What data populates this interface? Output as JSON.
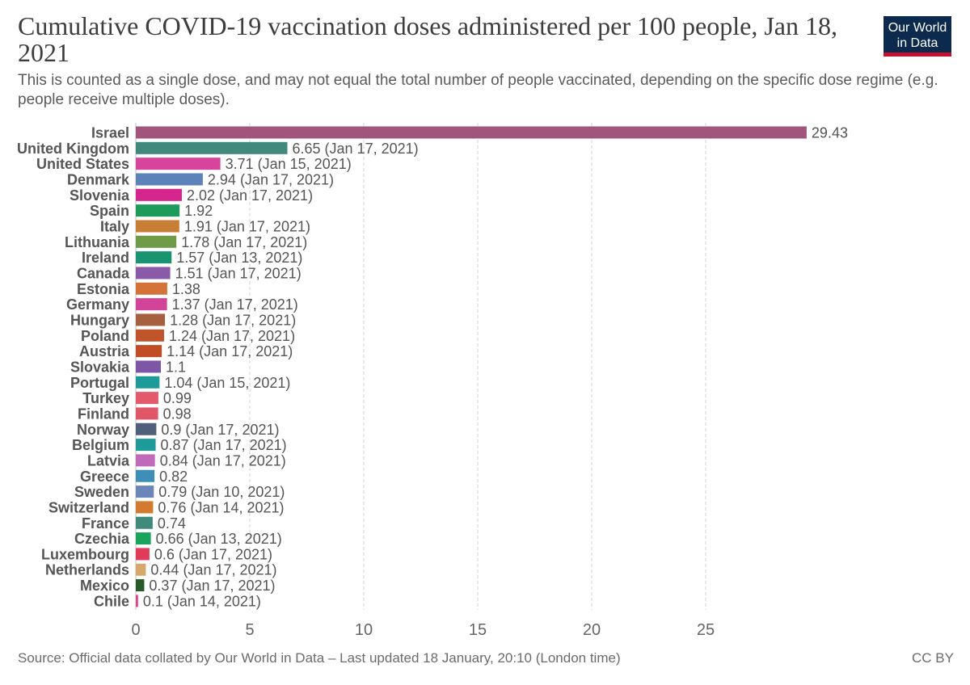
{
  "header": {
    "title": "Cumulative COVID-19 vaccination doses administered per 100 people, Jan 18, 2021",
    "subtitle": "This is counted as a single dose, and may not equal the total number of people vaccinated, depending on the specific dose regime (e.g. people receive multiple doses).",
    "logo_line1": "Our World",
    "logo_line2": "in Data"
  },
  "footer": {
    "source": "Source: Official data collated by Our World in Data – Last updated 18 January, 20:10 (London time)",
    "license": "CC BY"
  },
  "chart_data": {
    "type": "bar",
    "orientation": "horizontal",
    "title": "Cumulative COVID-19 vaccination doses administered per 100 people, Jan 18, 2021",
    "xlim": [
      0,
      30
    ],
    "xticks": [
      0,
      5,
      10,
      15,
      20,
      25
    ],
    "grid": "vertical dashed",
    "bars": [
      {
        "category": "Israel",
        "value": 29.43,
        "label": "29.43",
        "color": "#a2557a"
      },
      {
        "category": "United Kingdom",
        "value": 6.65,
        "label": "6.65 (Jan 17, 2021)",
        "color": "#3f8a7c"
      },
      {
        "category": "United States",
        "value": 3.71,
        "label": "3.71 (Jan 15, 2021)",
        "color": "#d6449c"
      },
      {
        "category": "Denmark",
        "value": 2.94,
        "label": "2.94 (Jan 17, 2021)",
        "color": "#5b82b9"
      },
      {
        "category": "Slovenia",
        "value": 2.02,
        "label": "2.02 (Jan 17, 2021)",
        "color": "#d5268d"
      },
      {
        "category": "Spain",
        "value": 1.92,
        "label": "1.92",
        "color": "#1e9a5b"
      },
      {
        "category": "Italy",
        "value": 1.91,
        "label": "1.91 (Jan 17, 2021)",
        "color": "#c97e36"
      },
      {
        "category": "Lithuania",
        "value": 1.78,
        "label": "1.78 (Jan 17, 2021)",
        "color": "#6f9a48"
      },
      {
        "category": "Ireland",
        "value": 1.57,
        "label": "1.57 (Jan 13, 2021)",
        "color": "#1a9470"
      },
      {
        "category": "Canada",
        "value": 1.51,
        "label": "1.51 (Jan 17, 2021)",
        "color": "#8a5aa8"
      },
      {
        "category": "Estonia",
        "value": 1.38,
        "label": "1.38",
        "color": "#d47338"
      },
      {
        "category": "Germany",
        "value": 1.37,
        "label": "1.37 (Jan 17, 2021)",
        "color": "#d4439a"
      },
      {
        "category": "Hungary",
        "value": 1.28,
        "label": "1.28 (Jan 17, 2021)",
        "color": "#a5603f"
      },
      {
        "category": "Poland",
        "value": 1.24,
        "label": "1.24 (Jan 17, 2021)",
        "color": "#c0552b"
      },
      {
        "category": "Austria",
        "value": 1.14,
        "label": "1.14 (Jan 17, 2021)",
        "color": "#c04d25"
      },
      {
        "category": "Slovakia",
        "value": 1.1,
        "label": "1.1",
        "color": "#7b57a6"
      },
      {
        "category": "Portugal",
        "value": 1.04,
        "label": "1.04 (Jan 15, 2021)",
        "color": "#1d9a9a"
      },
      {
        "category": "Turkey",
        "value": 0.99,
        "label": "0.99",
        "color": "#e25a6c"
      },
      {
        "category": "Finland",
        "value": 0.98,
        "label": "0.98",
        "color": "#e2566a"
      },
      {
        "category": "Norway",
        "value": 0.9,
        "label": "0.9 (Jan 17, 2021)",
        "color": "#4f5f7c"
      },
      {
        "category": "Belgium",
        "value": 0.87,
        "label": "0.87 (Jan 17, 2021)",
        "color": "#1e9a9a"
      },
      {
        "category": "Latvia",
        "value": 0.84,
        "label": "0.84 (Jan 17, 2021)",
        "color": "#c06ab9"
      },
      {
        "category": "Greece",
        "value": 0.82,
        "label": "0.82",
        "color": "#3d8fb8"
      },
      {
        "category": "Sweden",
        "value": 0.79,
        "label": "0.79 (Jan 10, 2021)",
        "color": "#6b86b8"
      },
      {
        "category": "Switzerland",
        "value": 0.76,
        "label": "0.76 (Jan 14, 2021)",
        "color": "#d27a2f"
      },
      {
        "category": "France",
        "value": 0.74,
        "label": "0.74",
        "color": "#3f8a7c"
      },
      {
        "category": "Czechia",
        "value": 0.66,
        "label": "0.66 (Jan 13, 2021)",
        "color": "#1aa35a"
      },
      {
        "category": "Luxembourg",
        "value": 0.6,
        "label": "0.6 (Jan 17, 2021)",
        "color": "#e03c5a"
      },
      {
        "category": "Netherlands",
        "value": 0.44,
        "label": "0.44 (Jan 17, 2021)",
        "color": "#d6a86c"
      },
      {
        "category": "Mexico",
        "value": 0.37,
        "label": "0.37 (Jan 17, 2021)",
        "color": "#2a5a2a"
      },
      {
        "category": "Chile",
        "value": 0.1,
        "label": "0.1 (Jan 14, 2021)",
        "color": "#e0448c"
      }
    ]
  }
}
